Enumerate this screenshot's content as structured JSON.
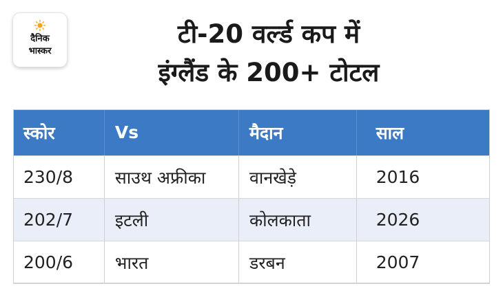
{
  "logo": {
    "line1": "दैनिक",
    "line2": "भास्कर",
    "sun_color": "#f7a21b"
  },
  "title": {
    "line1": "टी-20 वर्ल्ड कप में",
    "line2": "इंग्लैंड के 200+ टोटल"
  },
  "table": {
    "headers": [
      "स्कोर",
      "Vs",
      "मैदान",
      "साल"
    ],
    "rows": [
      [
        "230/8",
        "साउथ अफ्रीका",
        "वानखेड़े",
        "2016"
      ],
      [
        "202/7",
        "इटली",
        "कोलकाता",
        "2026"
      ],
      [
        "200/6",
        "भारत",
        "डरबन",
        "2007"
      ]
    ],
    "header_color": "#3d7ac5",
    "alt_row_color": "#e9eef8"
  }
}
